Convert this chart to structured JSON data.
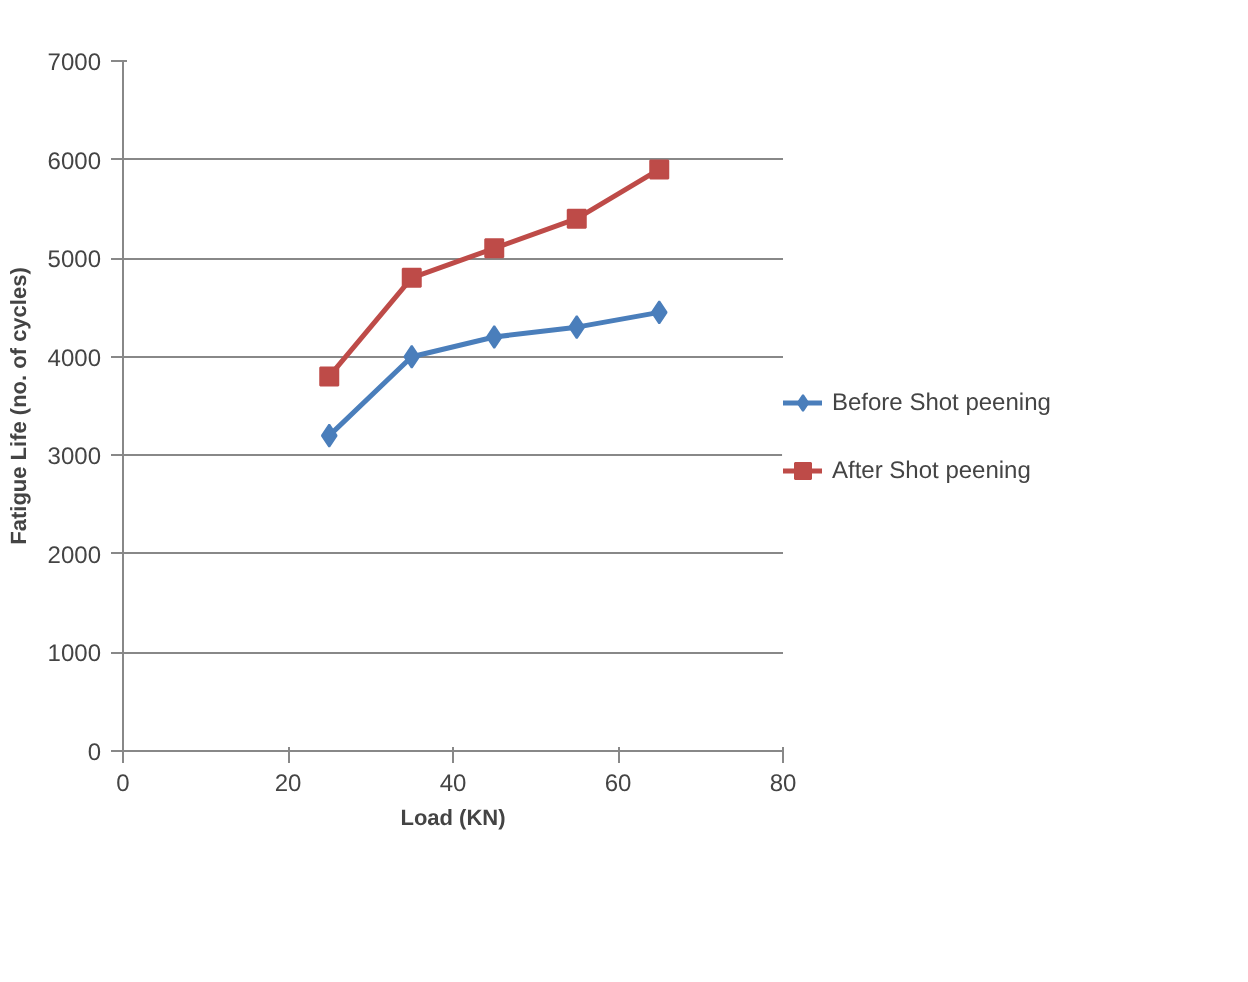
{
  "chart_data": {
    "type": "line",
    "xlabel": "Load (KN)",
    "ylabel": "Fatigue Life (no. of cycles)",
    "x": [
      25,
      35,
      45,
      55,
      65
    ],
    "series": [
      {
        "name": "Before Shot peening",
        "color": "#4a7ebb",
        "marker": "diamond",
        "values": [
          3200,
          4000,
          4200,
          4300,
          4450
        ]
      },
      {
        "name": "After Shot peening",
        "color": "#be4b48",
        "marker": "square",
        "values": [
          3800,
          4800,
          5100,
          5400,
          5900
        ]
      }
    ],
    "xlim": [
      0,
      80
    ],
    "xticks": [
      0,
      20,
      40,
      60,
      80
    ],
    "ylim": [
      0,
      7000
    ],
    "yticks": [
      0,
      1000,
      2000,
      3000,
      4000,
      5000,
      6000,
      7000
    ],
    "grid": "y",
    "legend": "right",
    "line_style": "solid"
  }
}
